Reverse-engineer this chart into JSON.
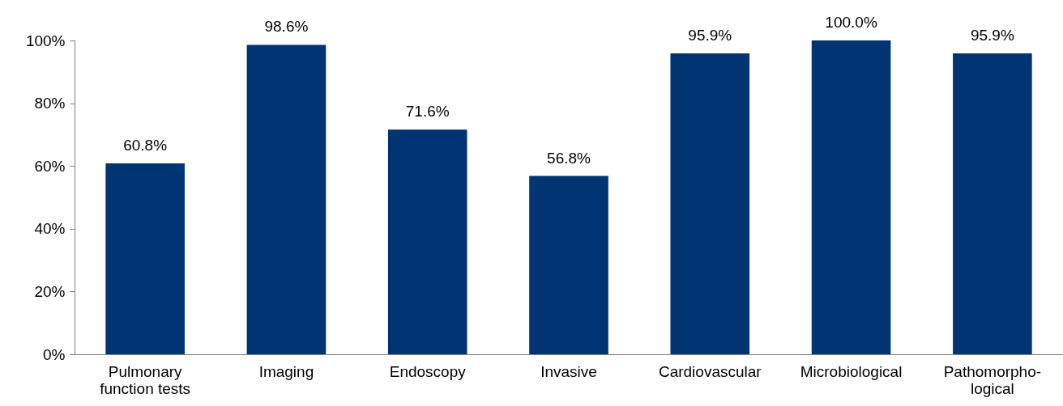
{
  "chart_data": {
    "type": "bar",
    "categories": [
      "Pulmonary\nfunction tests",
      "Imaging",
      "Endoscopy",
      "Invasive",
      "Cardiovascular",
      "Microbiological",
      "Pathomorpho-\nlogical"
    ],
    "values": [
      60.8,
      98.6,
      71.6,
      56.8,
      95.9,
      100.0,
      95.9
    ],
    "value_labels": [
      "60.8%",
      "98.6%",
      "71.6%",
      "56.8%",
      "95.9%",
      "100.0%",
      "95.9%"
    ],
    "color": "#003473",
    "ylim": [
      0,
      100
    ],
    "yticks": [
      {
        "value": 0,
        "label": "0%"
      },
      {
        "value": 20,
        "label": "20%"
      },
      {
        "value": 40,
        "label": "40%"
      },
      {
        "value": 60,
        "label": "60%"
      },
      {
        "value": 80,
        "label": "80%"
      },
      {
        "value": 100,
        "label": "100%"
      }
    ],
    "grid": false
  }
}
